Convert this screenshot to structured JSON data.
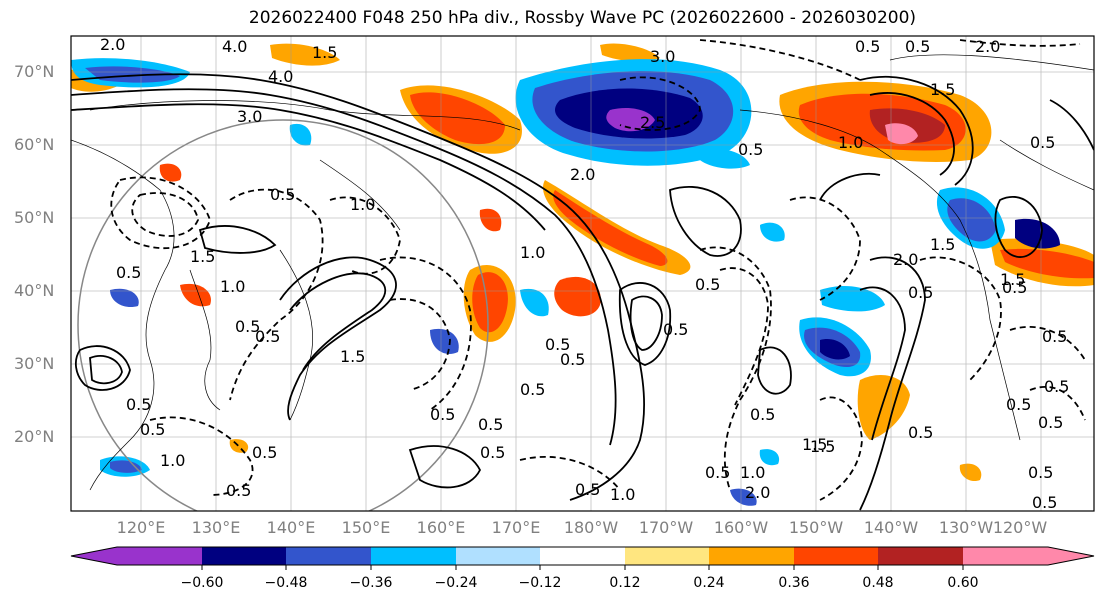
{
  "title": "2026022400 F048 250 hPa div., Rossby Wave PC (2026022600 - 2026030200)",
  "latitude_labels": [
    "70°N",
    "60°N",
    "50°N",
    "40°N",
    "30°N",
    "20°N"
  ],
  "longitude_labels": [
    "120°E",
    "130°E",
    "140°E",
    "150°E",
    "160°E",
    "170°E",
    "180°W",
    "170°W",
    "160°W",
    "150°W",
    "140°W",
    "130°W",
    "120°W"
  ],
  "colorbar": {
    "tick_labels": [
      "−0.60",
      "−0.48",
      "−0.36",
      "−0.24",
      "−0.12",
      "0.12",
      "0.24",
      "0.36",
      "0.48",
      "0.60"
    ],
    "colors": [
      "#9933cc",
      "#000080",
      "#3355cc",
      "#00bfff",
      "#b0e0ff",
      "#ffffff",
      "#ffe680",
      "#ffa500",
      "#ff4500",
      "#b22222",
      "#ff88aa"
    ]
  },
  "contour_labels": [
    "2.0",
    "4.0",
    "4.0",
    "3.0",
    "1.5",
    "0.5",
    "3.0",
    "1.0",
    "2.5",
    "0.5",
    "2.0",
    "1.5",
    "0.5",
    "1.0",
    "1.5",
    "0.5",
    "1.0",
    "0.5",
    "0.5",
    "1.0",
    "0.5",
    "0.5",
    "1.5",
    "2.0",
    "0.5",
    "2.0",
    "1.5",
    "0.5",
    "0.5",
    "1.0",
    "0.5",
    "0.5",
    "1.0",
    "0.5",
    "0.5",
    "0.5",
    "0.5",
    "0.5",
    "0.5",
    "0.5",
    "0.5",
    "1.5",
    "1.0",
    "2.0",
    "0.5",
    "0.5",
    "0.5",
    "1.5",
    "1.5",
    "0.5",
    "0.5",
    "0.5",
    "0.5",
    "0.5",
    "0.5",
    "0.5",
    "0.5"
  ]
}
